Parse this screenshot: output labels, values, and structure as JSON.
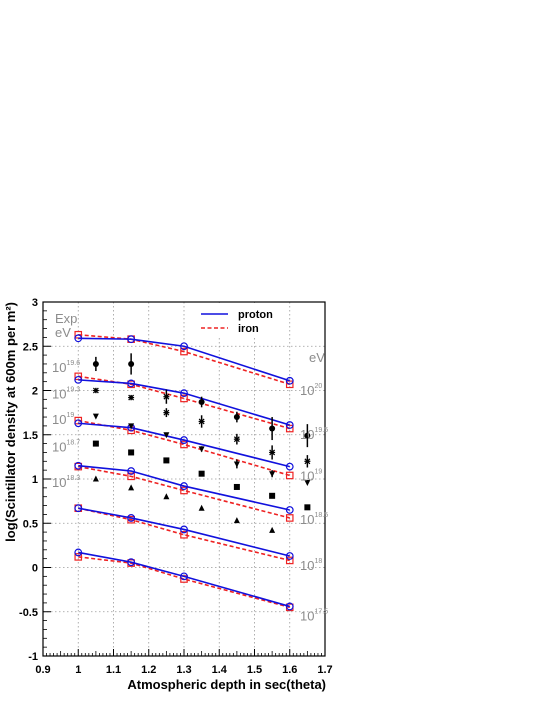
{
  "chart_data": {
    "type": "line",
    "xlabel": "Atmospheric depth in sec(theta)",
    "ylabel": "log(Scintillator density at 600m per m²)",
    "xlim": [
      0.9,
      1.7
    ],
    "ylim": [
      -1,
      3
    ],
    "x_ticks": [
      "0.9",
      "1",
      "1.1",
      "1.2",
      "1.3",
      "1.4",
      "1.5",
      "1.6",
      "1.7"
    ],
    "y_ticks": [
      "-1",
      "-0.5",
      "0",
      "0.5",
      "1",
      "1.5",
      "2",
      "2.5",
      "3"
    ],
    "grid": true,
    "legend": {
      "placement": "top-right",
      "entries": [
        {
          "label": "proton",
          "color": "#1111dd",
          "style": "solid"
        },
        {
          "label": "iron",
          "color": "#ee2222",
          "style": "dashed"
        }
      ]
    },
    "exp_label": {
      "line1": "Exp",
      "line2": "eV"
    },
    "sim_unit_label": "eV",
    "x_nodes": [
      1.0,
      1.15,
      1.3,
      1.6
    ],
    "proton_curves": [
      {
        "energy_exp": "20",
        "values": [
          2.59,
          2.58,
          2.5,
          2.11
        ]
      },
      {
        "energy_exp": "19.5",
        "values": [
          2.12,
          2.08,
          1.97,
          1.61
        ]
      },
      {
        "energy_exp": "19",
        "values": [
          1.63,
          1.58,
          1.44,
          1.14
        ]
      },
      {
        "energy_exp": "18.5",
        "values": [
          1.15,
          1.09,
          0.92,
          0.65
        ]
      },
      {
        "energy_exp": "18",
        "values": [
          0.67,
          0.56,
          0.43,
          0.13
        ]
      },
      {
        "energy_exp": "17.5",
        "values": [
          0.17,
          0.06,
          -0.1,
          -0.44
        ]
      }
    ],
    "iron_curves": [
      {
        "energy_exp": "20",
        "values": [
          2.63,
          2.58,
          2.44,
          2.07
        ]
      },
      {
        "energy_exp": "19.5",
        "values": [
          2.16,
          2.07,
          1.91,
          1.57
        ]
      },
      {
        "energy_exp": "19",
        "values": [
          1.66,
          1.55,
          1.39,
          1.04
        ]
      },
      {
        "energy_exp": "18.5",
        "values": [
          1.14,
          1.03,
          0.87,
          0.56
        ]
      },
      {
        "energy_exp": "18",
        "values": [
          0.67,
          0.54,
          0.37,
          0.08
        ]
      },
      {
        "energy_exp": "17.5",
        "values": [
          0.12,
          0.05,
          -0.13,
          -0.45
        ]
      }
    ],
    "exp_series": [
      {
        "energy_exp": "19.6",
        "marker": "circle",
        "points": [
          {
            "x": 1.05,
            "y": 2.3,
            "err": 0.08
          },
          {
            "x": 1.15,
            "y": 2.3,
            "err": 0.12
          },
          {
            "x": 1.35,
            "y": 1.87,
            "err": 0.06
          },
          {
            "x": 1.45,
            "y": 1.7,
            "err": 0.06
          },
          {
            "x": 1.55,
            "y": 1.57,
            "err": 0.13
          },
          {
            "x": 1.65,
            "y": 1.49,
            "err": 0.13
          }
        ]
      },
      {
        "energy_exp": "19.3",
        "marker": "star",
        "points": [
          {
            "x": 1.05,
            "y": 2.0,
            "err": 0.03
          },
          {
            "x": 1.15,
            "y": 1.92,
            "err": 0.03
          },
          {
            "x": 1.25,
            "y": 1.93,
            "err": 0.08
          },
          {
            "x": 1.25,
            "y": 1.75,
            "err": 0.05
          },
          {
            "x": 1.35,
            "y": 1.65,
            "err": 0.07
          },
          {
            "x": 1.45,
            "y": 1.45,
            "err": 0.06
          },
          {
            "x": 1.55,
            "y": 1.3,
            "err": 0.08
          },
          {
            "x": 1.65,
            "y": 1.2,
            "err": 0.07
          }
        ]
      },
      {
        "energy_exp": "19",
        "marker": "triangle-down",
        "points": [
          {
            "x": 1.05,
            "y": 1.71,
            "err": 0
          },
          {
            "x": 1.15,
            "y": 1.6,
            "err": 0
          },
          {
            "x": 1.25,
            "y": 1.5,
            "err": 0
          },
          {
            "x": 1.35,
            "y": 1.34,
            "err": 0.03
          },
          {
            "x": 1.45,
            "y": 1.17,
            "err": 0.05
          },
          {
            "x": 1.55,
            "y": 1.06,
            "err": 0.04
          },
          {
            "x": 1.65,
            "y": 0.96,
            "err": 0
          }
        ]
      },
      {
        "energy_exp": "18.7",
        "marker": "square",
        "points": [
          {
            "x": 1.05,
            "y": 1.4,
            "err": 0
          },
          {
            "x": 1.15,
            "y": 1.3,
            "err": 0
          },
          {
            "x": 1.25,
            "y": 1.21,
            "err": 0
          },
          {
            "x": 1.35,
            "y": 1.06,
            "err": 0
          },
          {
            "x": 1.45,
            "y": 0.91,
            "err": 0
          },
          {
            "x": 1.55,
            "y": 0.81,
            "err": 0
          },
          {
            "x": 1.65,
            "y": 0.68,
            "err": 0
          }
        ]
      },
      {
        "energy_exp": "18.3",
        "marker": "triangle-up",
        "points": [
          {
            "x": 1.05,
            "y": 1.0,
            "err": 0
          },
          {
            "x": 1.15,
            "y": 0.9,
            "err": 0
          },
          {
            "x": 1.25,
            "y": 0.8,
            "err": 0
          },
          {
            "x": 1.35,
            "y": 0.67,
            "err": 0
          },
          {
            "x": 1.45,
            "y": 0.53,
            "err": 0
          },
          {
            "x": 1.55,
            "y": 0.42,
            "err": 0
          }
        ]
      }
    ]
  },
  "colors": {
    "proton": "#1111dd",
    "iron": "#ee2222",
    "energy_label": "#8c8c8c",
    "exp_marker": "#000000"
  }
}
